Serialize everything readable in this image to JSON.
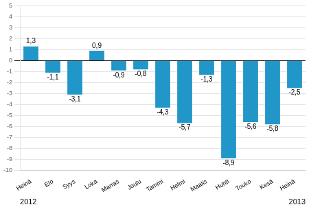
{
  "chart_data": {
    "type": "bar",
    "categories": [
      "Heinä",
      "Elo",
      "Syys",
      "Loka",
      "Marras",
      "Joulu",
      "Tammi",
      "Helmi",
      "Maalis",
      "Huhti",
      "Touko",
      "Kesä",
      "Heinä"
    ],
    "values": [
      1.3,
      -1.1,
      -3.1,
      0.9,
      -0.9,
      -0.8,
      -4.3,
      -5.7,
      -1.3,
      -8.9,
      -5.6,
      -5.8,
      -2.5
    ],
    "value_labels": [
      "1,3",
      "-1,1",
      "-3,1",
      "0,9",
      "-0,9",
      "-0,8",
      "-4,3",
      "-5,7",
      "-1,3",
      "-8,9",
      "-5,6",
      "-5,8",
      "-2,5"
    ],
    "color": "#2196c8",
    "ylim": [
      -10,
      5
    ],
    "yticks": [
      -10,
      -9,
      -8,
      -7,
      -6,
      -5,
      -4,
      -3,
      -2,
      -1,
      0,
      1,
      2,
      3,
      4,
      5
    ],
    "grid": true,
    "data_labels": true,
    "annotations": [
      "2012",
      "2013"
    ]
  }
}
